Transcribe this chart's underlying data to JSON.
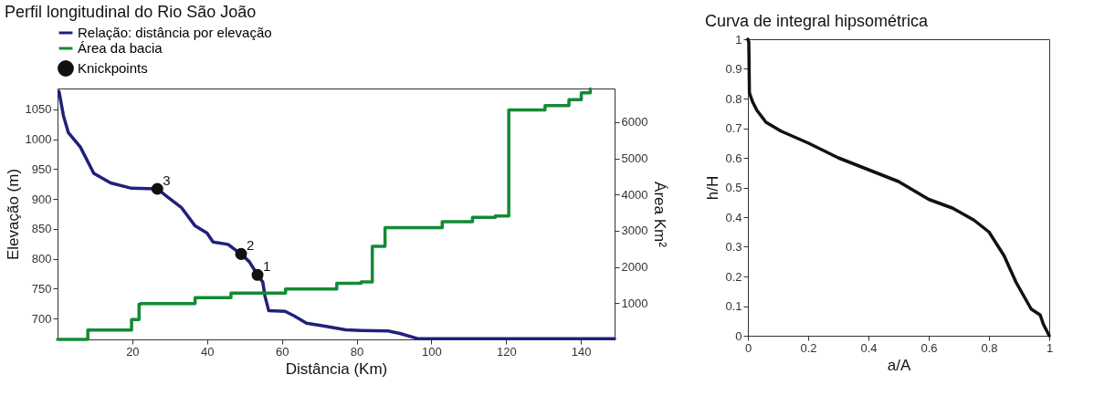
{
  "chart_data": [
    {
      "type": "line",
      "title": "Perfil longitudinal do Rio São João",
      "xlabel": "Distância (Km)",
      "ylabel": "Elevação (m)",
      "y2label": "Área Km²",
      "xlim": [
        0,
        149
      ],
      "xticks": [
        20,
        40,
        60,
        80,
        100,
        120,
        140
      ],
      "ylim": [
        665,
        1085
      ],
      "yticks": [
        700,
        750,
        800,
        850,
        900,
        950,
        1000,
        1050
      ],
      "y2lim": [
        0,
        6930
      ],
      "y2ticks": [
        1000,
        2000,
        3000,
        4000,
        5000,
        6000
      ],
      "grid": false,
      "legend": "top left",
      "series": [
        {
          "name": "Relação: distância por elevação",
          "color": "#22207a",
          "x": [
            0.4,
            1.6,
            2.9,
            6.1,
            9.7,
            14.2,
            19.8,
            26.7,
            29.5,
            33.1,
            36.8,
            40,
            41.6,
            45.6,
            49.1,
            51.3,
            53.5,
            54.9,
            55.5,
            56.5,
            60.9,
            63.4,
            66.6,
            71.5,
            77.1,
            81.2,
            88.4,
            91.6,
            96.5,
            149
          ],
          "values": [
            1080,
            1039,
            1011,
            987,
            943,
            927,
            918,
            917,
            903,
            886,
            855,
            843,
            828,
            824,
            808,
            795,
            773,
            761,
            737,
            713,
            712,
            704,
            692,
            687,
            681,
            680,
            679,
            675,
            666,
            666
          ]
        },
        {
          "name": "Área da bacia",
          "color": "#138a36",
          "type": "step",
          "axis": "y2",
          "x": [
            0,
            8.1,
            19.8,
            21.8,
            22.2,
            36.8,
            46.4,
            61,
            74.7,
            81.2,
            84.2,
            87.6,
            102.9,
            111,
            117.1,
            120.7,
            130.4,
            136.8,
            140.1,
            142.5
          ],
          "values": [
            0,
            260,
            550,
            970,
            990,
            1150,
            1280,
            1390,
            1550,
            1590,
            2570,
            3090,
            3250,
            3370,
            3410,
            6340,
            6460,
            6620,
            6810,
            6920
          ]
        },
        {
          "name": "Knickpoints",
          "color": "#111111",
          "type": "scatter",
          "marker": "circle",
          "x": [
            26.7,
            49.1,
            53.5
          ],
          "values": [
            917,
            808,
            773
          ]
        }
      ],
      "annotations": [
        {
          "text": "3",
          "x": 26.7,
          "y": 917
        },
        {
          "text": "2",
          "x": 49.1,
          "y": 808
        },
        {
          "text": "1",
          "x": 53.5,
          "y": 773
        }
      ]
    },
    {
      "type": "line",
      "title": "Curva de integral hipsométrica",
      "xlabel": "a/A",
      "ylabel": "h/H",
      "xlim": [
        0,
        1
      ],
      "xticks": [
        0,
        0.2,
        0.4,
        0.6,
        0.8,
        1
      ],
      "ylim": [
        0,
        1
      ],
      "yticks": [
        0,
        0.1,
        0.2,
        0.3,
        0.4,
        0.5,
        0.6,
        0.7,
        0.8,
        0.9,
        1
      ],
      "grid": false,
      "legend": false,
      "series": [
        {
          "color": "#111111",
          "x": [
            0,
            0.003,
            0.005,
            0.015,
            0.03,
            0.06,
            0.11,
            0.2,
            0.3,
            0.4,
            0.5,
            0.6,
            0.68,
            0.75,
            0.8,
            0.85,
            0.89,
            0.94,
            0.97,
            0.98,
            1
          ],
          "values": [
            1,
            0.99,
            0.82,
            0.79,
            0.76,
            0.72,
            0.69,
            0.65,
            0.6,
            0.56,
            0.52,
            0.46,
            0.43,
            0.39,
            0.35,
            0.27,
            0.18,
            0.09,
            0.07,
            0.04,
            0
          ]
        }
      ]
    }
  ]
}
